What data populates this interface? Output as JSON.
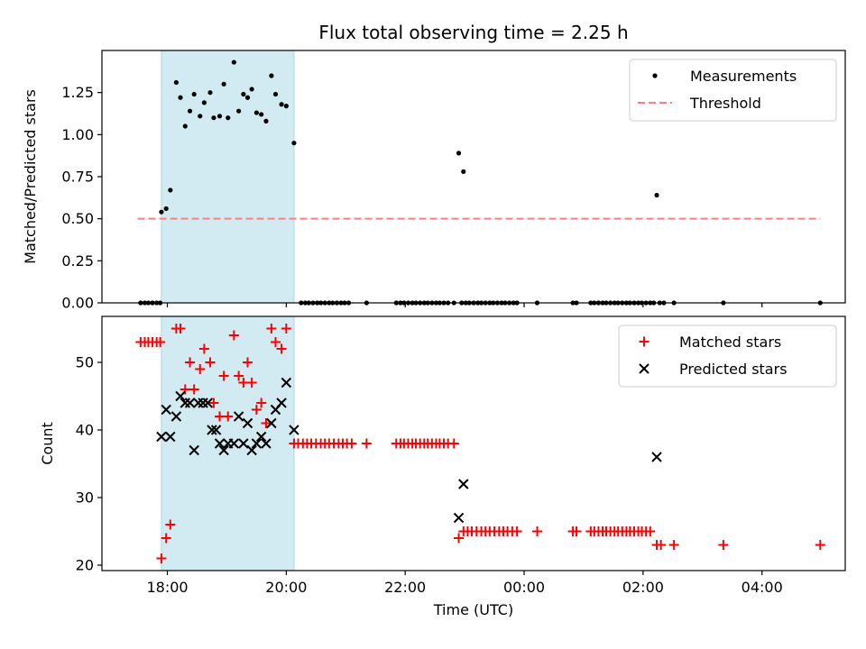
{
  "chart_data": [
    {
      "panel": "top",
      "type": "scatter",
      "title": "Flux total observing time = 2.25 h",
      "xlabel": "",
      "ylabel": "Matched/Predicted stars",
      "xlim": [
        16.9,
        29.4
      ],
      "ylim": [
        0.0,
        1.5
      ],
      "yticks": [
        0.0,
        0.25,
        0.5,
        0.75,
        1.0,
        1.25
      ],
      "ytick_labels": [
        "0.00",
        "0.25",
        "0.50",
        "0.75",
        "1.00",
        "1.25"
      ],
      "shaded_span": [
        17.9,
        20.13
      ],
      "shade_color": "#add8e6",
      "legend_position": "upper right",
      "series": [
        {
          "name": "Measurements",
          "marker": "dot",
          "color": "#000000",
          "points": [
            [
              17.55,
              0.0
            ],
            [
              17.62,
              0.0
            ],
            [
              17.68,
              0.0
            ],
            [
              17.75,
              0.0
            ],
            [
              17.82,
              0.0
            ],
            [
              17.88,
              0.0
            ],
            [
              17.9,
              0.54
            ],
            [
              17.98,
              0.56
            ],
            [
              18.05,
              0.67
            ],
            [
              18.15,
              1.31
            ],
            [
              18.22,
              1.22
            ],
            [
              18.3,
              1.05
            ],
            [
              18.38,
              1.14
            ],
            [
              18.45,
              1.24
            ],
            [
              18.55,
              1.11
            ],
            [
              18.62,
              1.19
            ],
            [
              18.72,
              1.25
            ],
            [
              18.78,
              1.1
            ],
            [
              18.88,
              1.11
            ],
            [
              18.95,
              1.3
            ],
            [
              19.02,
              1.1
            ],
            [
              19.12,
              1.43
            ],
            [
              19.2,
              1.14
            ],
            [
              19.28,
              1.24
            ],
            [
              19.35,
              1.22
            ],
            [
              19.42,
              1.27
            ],
            [
              19.5,
              1.13
            ],
            [
              19.58,
              1.12
            ],
            [
              19.66,
              1.08
            ],
            [
              19.75,
              1.35
            ],
            [
              19.82,
              1.24
            ],
            [
              19.92,
              1.18
            ],
            [
              20.0,
              1.17
            ],
            [
              20.13,
              0.95
            ],
            [
              20.25,
              0.0
            ],
            [
              20.32,
              0.0
            ],
            [
              20.38,
              0.0
            ],
            [
              20.45,
              0.0
            ],
            [
              20.52,
              0.0
            ],
            [
              20.58,
              0.0
            ],
            [
              20.65,
              0.0
            ],
            [
              20.72,
              0.0
            ],
            [
              20.78,
              0.0
            ],
            [
              20.85,
              0.0
            ],
            [
              20.92,
              0.0
            ],
            [
              20.98,
              0.0
            ],
            [
              21.05,
              0.0
            ],
            [
              21.35,
              0.0
            ],
            [
              21.85,
              0.0
            ],
            [
              21.92,
              0.0
            ],
            [
              21.98,
              0.0
            ],
            [
              22.05,
              0.0
            ],
            [
              22.12,
              0.0
            ],
            [
              22.18,
              0.0
            ],
            [
              22.25,
              0.0
            ],
            [
              22.32,
              0.0
            ],
            [
              22.38,
              0.0
            ],
            [
              22.45,
              0.0
            ],
            [
              22.52,
              0.0
            ],
            [
              22.58,
              0.0
            ],
            [
              22.65,
              0.0
            ],
            [
              22.72,
              0.0
            ],
            [
              22.82,
              0.0
            ],
            [
              22.9,
              0.89
            ],
            [
              22.98,
              0.78
            ],
            [
              22.95,
              0.0
            ],
            [
              23.02,
              0.0
            ],
            [
              23.08,
              0.0
            ],
            [
              23.15,
              0.0
            ],
            [
              23.22,
              0.0
            ],
            [
              23.28,
              0.0
            ],
            [
              23.35,
              0.0
            ],
            [
              23.42,
              0.0
            ],
            [
              23.48,
              0.0
            ],
            [
              23.55,
              0.0
            ],
            [
              23.62,
              0.0
            ],
            [
              23.68,
              0.0
            ],
            [
              23.75,
              0.0
            ],
            [
              23.82,
              0.0
            ],
            [
              23.88,
              0.0
            ],
            [
              24.22,
              0.0
            ],
            [
              24.82,
              0.0
            ],
            [
              24.88,
              0.0
            ],
            [
              25.12,
              0.0
            ],
            [
              25.18,
              0.0
            ],
            [
              25.25,
              0.0
            ],
            [
              25.32,
              0.0
            ],
            [
              25.38,
              0.0
            ],
            [
              25.45,
              0.0
            ],
            [
              25.52,
              0.0
            ],
            [
              25.58,
              0.0
            ],
            [
              25.65,
              0.0
            ],
            [
              25.72,
              0.0
            ],
            [
              25.78,
              0.0
            ],
            [
              25.85,
              0.0
            ],
            [
              25.92,
              0.0
            ],
            [
              25.98,
              0.0
            ],
            [
              26.05,
              0.0
            ],
            [
              26.12,
              0.0
            ],
            [
              26.18,
              0.0
            ],
            [
              26.23,
              0.64
            ],
            [
              26.28,
              0.0
            ],
            [
              26.35,
              0.0
            ],
            [
              26.52,
              0.0
            ],
            [
              27.35,
              0.0
            ],
            [
              28.98,
              0.0
            ]
          ]
        },
        {
          "name": "Threshold",
          "marker": "dashed-line",
          "color": "#ff7f7f",
          "points": [
            [
              17.5,
              0.5
            ],
            [
              28.98,
              0.5
            ]
          ]
        }
      ]
    },
    {
      "panel": "bottom",
      "type": "scatter",
      "title": "",
      "xlabel": "Time (UTC)",
      "ylabel": "Count",
      "xlim": [
        16.9,
        29.4
      ],
      "ylim": [
        19.2,
        56.8
      ],
      "yticks": [
        20,
        30,
        40,
        50
      ],
      "ytick_labels": [
        "20",
        "30",
        "40",
        "50"
      ],
      "xticks": [
        18,
        20,
        22,
        24,
        26,
        28
      ],
      "xtick_labels": [
        "18:00",
        "20:00",
        "22:00",
        "00:00",
        "02:00",
        "04:00"
      ],
      "shaded_span": [
        17.9,
        20.13
      ],
      "shade_color": "#add8e6",
      "legend_position": "upper right",
      "series": [
        {
          "name": "Matched stars",
          "marker": "plus",
          "color": "#ff0000",
          "points": [
            [
              17.55,
              53
            ],
            [
              17.62,
              53
            ],
            [
              17.68,
              53
            ],
            [
              17.75,
              53
            ],
            [
              17.82,
              53
            ],
            [
              17.88,
              53
            ],
            [
              17.9,
              21
            ],
            [
              17.98,
              24
            ],
            [
              18.05,
              26
            ],
            [
              18.15,
              55
            ],
            [
              18.22,
              55
            ],
            [
              18.3,
              46
            ],
            [
              18.38,
              50
            ],
            [
              18.45,
              46
            ],
            [
              18.55,
              49
            ],
            [
              18.62,
              52
            ],
            [
              18.72,
              50
            ],
            [
              18.78,
              44
            ],
            [
              18.88,
              42
            ],
            [
              18.95,
              48
            ],
            [
              19.02,
              42
            ],
            [
              19.12,
              54
            ],
            [
              19.2,
              48
            ],
            [
              19.28,
              47
            ],
            [
              19.35,
              50
            ],
            [
              19.42,
              47
            ],
            [
              19.5,
              43
            ],
            [
              19.58,
              44
            ],
            [
              19.66,
              41
            ],
            [
              19.75,
              55
            ],
            [
              19.82,
              53
            ],
            [
              19.92,
              52
            ],
            [
              20.0,
              55
            ],
            [
              20.13,
              38
            ],
            [
              20.2,
              38
            ],
            [
              20.28,
              38
            ],
            [
              20.35,
              38
            ],
            [
              20.42,
              38
            ],
            [
              20.5,
              38
            ],
            [
              20.58,
              38
            ],
            [
              20.65,
              38
            ],
            [
              20.72,
              38
            ],
            [
              20.8,
              38
            ],
            [
              20.88,
              38
            ],
            [
              20.95,
              38
            ],
            [
              21.02,
              38
            ],
            [
              21.1,
              38
            ],
            [
              21.35,
              38
            ],
            [
              21.85,
              38
            ],
            [
              21.92,
              38
            ],
            [
              21.98,
              38
            ],
            [
              22.05,
              38
            ],
            [
              22.12,
              38
            ],
            [
              22.18,
              38
            ],
            [
              22.25,
              38
            ],
            [
              22.32,
              38
            ],
            [
              22.38,
              38
            ],
            [
              22.45,
              38
            ],
            [
              22.52,
              38
            ],
            [
              22.58,
              38
            ],
            [
              22.65,
              38
            ],
            [
              22.72,
              38
            ],
            [
              22.82,
              38
            ],
            [
              22.9,
              24
            ],
            [
              22.98,
              25
            ],
            [
              23.05,
              25
            ],
            [
              23.12,
              25
            ],
            [
              23.2,
              25
            ],
            [
              23.28,
              25
            ],
            [
              23.35,
              25
            ],
            [
              23.42,
              25
            ],
            [
              23.5,
              25
            ],
            [
              23.58,
              25
            ],
            [
              23.65,
              25
            ],
            [
              23.72,
              25
            ],
            [
              23.8,
              25
            ],
            [
              23.88,
              25
            ],
            [
              24.22,
              25
            ],
            [
              24.82,
              25
            ],
            [
              24.88,
              25
            ],
            [
              25.12,
              25
            ],
            [
              25.18,
              25
            ],
            [
              25.25,
              25
            ],
            [
              25.32,
              25
            ],
            [
              25.38,
              25
            ],
            [
              25.45,
              25
            ],
            [
              25.52,
              25
            ],
            [
              25.58,
              25
            ],
            [
              25.65,
              25
            ],
            [
              25.72,
              25
            ],
            [
              25.78,
              25
            ],
            [
              25.85,
              25
            ],
            [
              25.92,
              25
            ],
            [
              25.98,
              25
            ],
            [
              26.05,
              25
            ],
            [
              26.12,
              25
            ],
            [
              26.23,
              23
            ],
            [
              26.3,
              23
            ],
            [
              26.52,
              23
            ],
            [
              27.35,
              23
            ],
            [
              28.98,
              23
            ]
          ]
        },
        {
          "name": "Predicted stars",
          "marker": "x",
          "color": "#000000",
          "points": [
            [
              17.9,
              39
            ],
            [
              17.98,
              43
            ],
            [
              18.05,
              39
            ],
            [
              18.15,
              42
            ],
            [
              18.22,
              45
            ],
            [
              18.3,
              44
            ],
            [
              18.38,
              44
            ],
            [
              18.45,
              37
            ],
            [
              18.52,
              44
            ],
            [
              18.6,
              44
            ],
            [
              18.68,
              44
            ],
            [
              18.75,
              40
            ],
            [
              18.82,
              40
            ],
            [
              18.88,
              38
            ],
            [
              18.95,
              37
            ],
            [
              19.02,
              38
            ],
            [
              19.12,
              38
            ],
            [
              19.2,
              42
            ],
            [
              19.28,
              38
            ],
            [
              19.35,
              41
            ],
            [
              19.42,
              37
            ],
            [
              19.5,
              38
            ],
            [
              19.58,
              39
            ],
            [
              19.66,
              38
            ],
            [
              19.75,
              41
            ],
            [
              19.82,
              43
            ],
            [
              19.92,
              44
            ],
            [
              20.0,
              47
            ],
            [
              20.13,
              40
            ],
            [
              22.9,
              27
            ],
            [
              22.98,
              32
            ],
            [
              26.23,
              36
            ]
          ]
        }
      ]
    }
  ]
}
